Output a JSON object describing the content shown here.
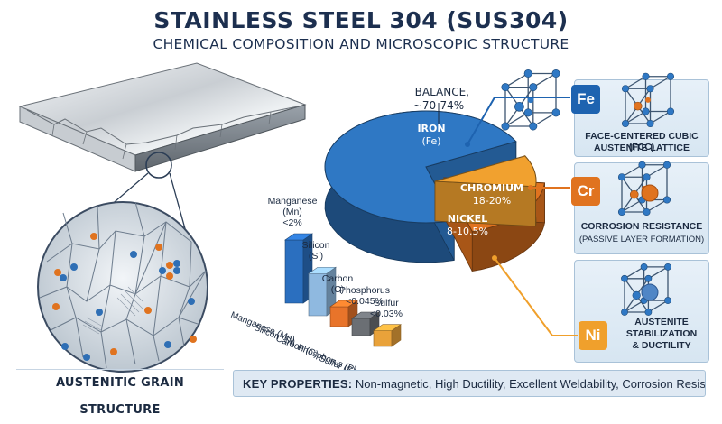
{
  "header": {
    "title": "STAINLESS STEEL 304 (SUS304)",
    "subtitle": "CHEMICAL COMPOSITION AND MICROSCOPIC STRUCTURE"
  },
  "microstructure": {
    "caption": "AUSTENITIC GRAIN STRUCTURE"
  },
  "pie": {
    "balance_label": "BALANCE,\n~70-74%",
    "slices": [
      {
        "element": "IRON",
        "symbol": "(Fe)",
        "range": "~70-74%",
        "value": 72,
        "color": "#2f78c4"
      },
      {
        "element": "CHROMIUM",
        "symbol": "",
        "range": "18-20%",
        "value": 19,
        "color": "#e0731f"
      },
      {
        "element": "NICKEL",
        "symbol": "",
        "range": "8-10.5%",
        "value": 9,
        "color": "#f1a12f"
      }
    ]
  },
  "minor_elements": {
    "bars": [
      {
        "name": "Manganese",
        "symbol": "(Mn)",
        "limit": "<2%",
        "axis": "Manganese (Mn)",
        "value": 2,
        "color": "#2b6fbf"
      },
      {
        "name": "Silicon",
        "symbol": "(Si)",
        "limit": "",
        "axis": "Silicon (Si)",
        "value": 0.75,
        "color": "#8fb9e0"
      },
      {
        "name": "Carbon",
        "symbol": "(C)",
        "limit": "",
        "axis": "Carbon (C)",
        "value": 0.08,
        "color": "#e8742a"
      },
      {
        "name": "Phosphorus",
        "symbol": "",
        "limit": "<0.045%",
        "axis": "Phosphorus (P)",
        "value": 0.045,
        "color": "#6b6f74"
      },
      {
        "name": "Sulfur",
        "symbol": "",
        "limit": "<0.03%",
        "axis": "Sulfur (S)",
        "value": 0.03,
        "color": "#e9a23a"
      }
    ]
  },
  "properties": [
    {
      "symbol": "Fe",
      "color": "#1e63b0",
      "lines": [
        "FACE-CENTERED CUBIC (FCC)",
        "AUSTENITE LATTICE"
      ]
    },
    {
      "symbol": "Cr",
      "color": "#e0731f",
      "lines": [
        "CORROSION RESISTANCE",
        "(PASSIVE LAYER FORMATION)"
      ]
    },
    {
      "symbol": "Ni",
      "color": "#f0a02c",
      "lines": [
        "AUSTENITE",
        "STABILIZATION",
        "& DUCTILITY"
      ]
    }
  ],
  "key_properties": {
    "label": "KEY PROPERTIES:",
    "text": " Non-magnetic, High Ductility, Excellent Weldability, Corrosion Resistant"
  }
}
